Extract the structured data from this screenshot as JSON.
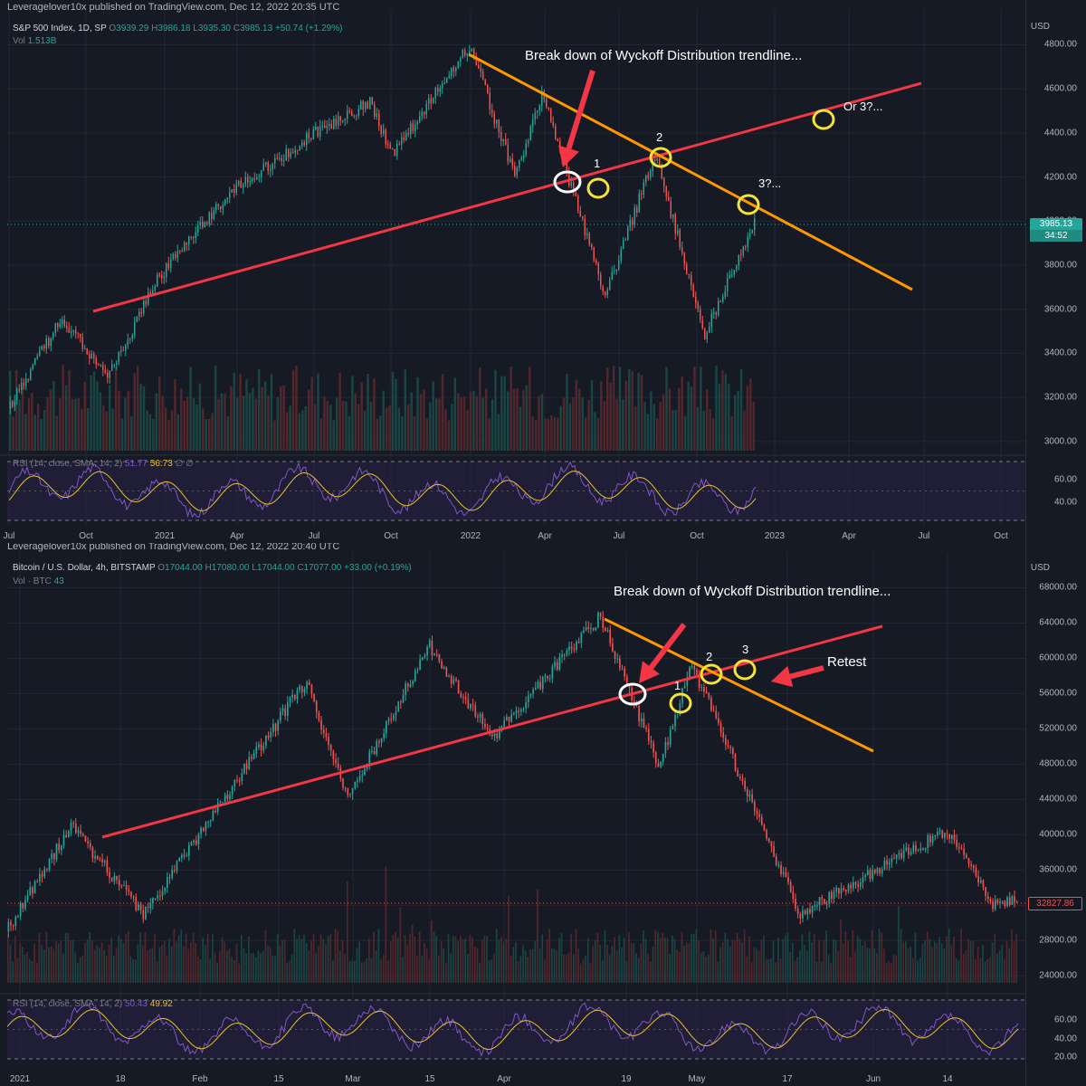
{
  "top": {
    "published": "Leveragelover10x published on TradingView.com, Dec 12, 2022 20:35 UTC",
    "symbol": "S&P 500 Index, 1D, SP",
    "o_label": "O",
    "o": "3939.29",
    "h_label": "H",
    "h": "3986.18",
    "l_label": "L",
    "l": "3935.30",
    "c_label": "C",
    "c": "3985.13",
    "change": "+50.74 (+1.29%)",
    "vol_label": "Vol",
    "vol": "1.513B",
    "currency": "USD",
    "price_badge": "3985.13",
    "price_badge_time": "34:52",
    "rsi_label": "RSI (14, close, SMA, 14, 2)",
    "rsi_v1": "51.77",
    "rsi_v2": "56.73",
    "rsi_v3": "∅ ∅",
    "annotation_main": "Break down of Wyckoff Distribution trendline...",
    "label_1": "1",
    "label_2": "2",
    "label_3": "3?...",
    "label_or3": "Or 3?...",
    "colors": {
      "uptrend": "#f23645",
      "downtrend": "#ff9800",
      "circle": "#f6e33a",
      "circle_break": "#ffffff",
      "arrow": "#f23645",
      "rsi": "#7e57c2",
      "rsi_ma": "#e6c229"
    }
  },
  "bottom": {
    "published": "Leveragelover10x published on TradingView.com, Dec 12, 2022 20:40 UTC",
    "symbol": "Bitcoin / U.S. Dollar, 4h, BITSTAMP",
    "o_label": "O",
    "o": "17044.00",
    "h_label": "H",
    "h": "17080.00",
    "l_label": "L",
    "l": "17044.00",
    "c_label": "C",
    "c": "17077.00",
    "change": "+33.00 (+0.19%)",
    "vol_label": "Vol · BTC",
    "vol": "43",
    "currency": "USD",
    "price_badge": "32827.86",
    "rsi_label": "RSI (14, close, SMA, 14, 2)",
    "rsi_v1": "50.43",
    "rsi_v2": "49.92",
    "annotation_main": "Break down of Wyckoff Distribution trendline...",
    "label_1": "1",
    "label_2": "2",
    "label_3": "3",
    "label_retest": "Retest"
  },
  "chart_data": [
    {
      "type": "candlestick",
      "title": "S&P 500 Index, 1D, SP",
      "x_ticks": [
        "Jul",
        "Oct",
        "2021",
        "Apr",
        "Jul",
        "Oct",
        "2022",
        "Apr",
        "Jul",
        "Oct",
        "2023",
        "Apr",
        "Jul",
        "Oct"
      ],
      "y_ticks": [
        4800,
        4600,
        4400,
        4200,
        4000,
        3800,
        3600,
        3400,
        3200,
        3000
      ],
      "ylim": [
        2950,
        4880
      ],
      "rsi_ticks": [
        60,
        40
      ],
      "last_close": 3985.13,
      "approx_path": [
        {
          "x": "Jul 2020",
          "y": 3150
        },
        {
          "x": "Sep 2020",
          "y": 3560
        },
        {
          "x": "Oct 2020",
          "y": 3280
        },
        {
          "x": "Jan 2021",
          "y": 3740
        },
        {
          "x": "Apr 2021",
          "y": 4150
        },
        {
          "x": "Jul 2021",
          "y": 4400
        },
        {
          "x": "Sep 2021",
          "y": 4540
        },
        {
          "x": "Oct 2021",
          "y": 4300
        },
        {
          "x": "Jan 2022",
          "y": 4800
        },
        {
          "x": "Mar 2022",
          "y": 4200
        },
        {
          "x": "Apr 2022",
          "y": 4580
        },
        {
          "x": "Jun 2022",
          "y": 3660
        },
        {
          "x": "Aug 2022",
          "y": 4300
        },
        {
          "x": "Oct 2022",
          "y": 3490
        },
        {
          "x": "Dec 2022",
          "y": 3985
        }
      ],
      "trendlines": [
        {
          "name": "uptrend",
          "from": {
            "x": "Sep 2020",
            "y": 3560
          },
          "to": {
            "x": "Jul 2023",
            "y": 4680
          }
        },
        {
          "name": "downtrend",
          "from": {
            "x": "Jan 2022",
            "y": 4820
          },
          "to": {
            "x": "Jun 2023",
            "y": 3670
          }
        }
      ]
    },
    {
      "type": "candlestick",
      "title": "Bitcoin / U.S. Dollar, 4h, BITSTAMP",
      "x_ticks": [
        "2021",
        "18",
        "Feb",
        "15",
        "Mar",
        "15",
        "Apr",
        "19",
        "May",
        "17",
        "Jun",
        "14"
      ],
      "y_ticks": [
        68000,
        64000,
        60000,
        56000,
        52000,
        48000,
        44000,
        40000,
        36000,
        32000,
        28000,
        24000
      ],
      "ylim": [
        23000,
        70000
      ],
      "rsi_ticks": [
        60,
        40,
        20
      ],
      "last_close": 32827.86,
      "approx_path": [
        {
          "x": "Jan 2021",
          "y": 29000
        },
        {
          "x": "Jan 8 2021",
          "y": 41000
        },
        {
          "x": "Jan 22 2021",
          "y": 31000
        },
        {
          "x": "Feb 21 2021",
          "y": 57500
        },
        {
          "x": "Feb 28 2021",
          "y": 44000
        },
        {
          "x": "Mar 13 2021",
          "y": 61500
        },
        {
          "x": "Mar 25 2021",
          "y": 51000
        },
        {
          "x": "Apr 14 2021",
          "y": 64800
        },
        {
          "x": "Apr 25 2021",
          "y": 47500
        },
        {
          "x": "May 10 2021",
          "y": 59500
        },
        {
          "x": "May 19 2021",
          "y": 31000
        },
        {
          "x": "Jun 14 2021",
          "y": 40500
        },
        {
          "x": "Jun 22 2021",
          "y": 32000
        },
        {
          "x": "Jun 27 2021",
          "y": 32828
        }
      ],
      "trendlines": [
        {
          "name": "uptrend",
          "from": {
            "x": "Jan 8 2021",
            "y": 40500
          },
          "to": {
            "x": "Jun 2 2021",
            "y": 64000
          }
        },
        {
          "name": "downtrend",
          "from": {
            "x": "Apr 14 2021",
            "y": 64800
          },
          "to": {
            "x": "Jun 1 2021",
            "y": 50000
          }
        }
      ]
    }
  ]
}
